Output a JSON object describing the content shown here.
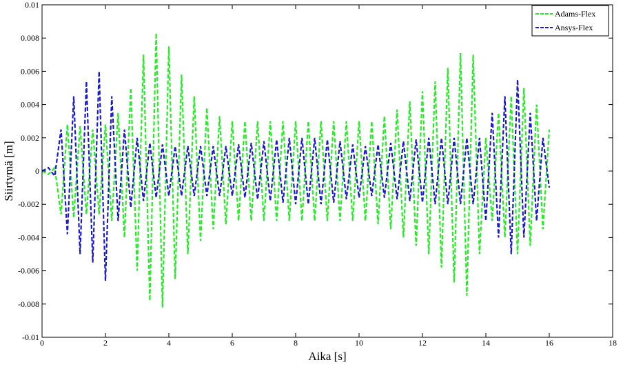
{
  "chart_data": {
    "type": "line",
    "xlabel": "Aika [s]",
    "ylabel": "Siirtymä [m]",
    "xlim": [
      0,
      18
    ],
    "ylim": [
      -0.01,
      0.01
    ],
    "xticks": [
      0,
      2,
      4,
      6,
      8,
      10,
      12,
      14,
      16,
      18
    ],
    "yticks": [
      -0.01,
      -0.008,
      -0.006,
      -0.004,
      -0.002,
      0,
      0.002,
      0.004,
      0.006,
      0.008,
      0.01
    ],
    "grid": false,
    "legend": "upper right",
    "x": [
      0,
      0.2,
      0.4,
      0.6,
      0.8,
      1,
      1.2,
      1.4,
      1.6,
      1.8,
      2,
      2.2,
      2.4,
      2.6,
      2.8,
      3,
      3.2,
      3.4,
      3.6,
      3.8,
      4,
      4.2,
      4.4,
      4.6,
      4.8,
      5,
      5.2,
      5.4,
      5.6,
      5.8,
      6,
      6.2,
      6.4,
      6.6,
      6.8,
      7,
      7.2,
      7.4,
      7.6,
      7.8,
      8,
      8.2,
      8.4,
      8.6,
      8.8,
      9,
      9.2,
      9.4,
      9.6,
      9.8,
      10,
      10.2,
      10.4,
      10.6,
      10.8,
      11,
      11.2,
      11.4,
      11.6,
      11.8,
      12,
      12.2,
      12.4,
      12.6,
      12.8,
      13,
      13.2,
      13.4,
      13.6,
      13.8,
      14,
      14.2,
      14.4,
      14.6,
      14.8,
      15,
      15.2,
      15.4,
      15.6,
      15.8,
      16
    ],
    "series": [
      {
        "name": "Adams-Flex",
        "color": "#22ee22",
        "values": [
          0,
          -0.0002,
          0.0002,
          -0.0026,
          0.0028,
          -0.0028,
          0.0027,
          -0.0026,
          0.0025,
          -0.0026,
          0.0028,
          -0.003,
          0.0035,
          -0.004,
          0.005,
          -0.006,
          0.007,
          -0.0078,
          0.0083,
          -0.0082,
          0.0075,
          -0.0065,
          0.0058,
          -0.005,
          0.0045,
          -0.0042,
          0.0038,
          -0.0035,
          0.0033,
          -0.0032,
          0.003,
          -0.003,
          0.003,
          -0.003,
          0.003,
          -0.003,
          0.003,
          -0.003,
          0.003,
          -0.003,
          0.003,
          -0.003,
          0.003,
          -0.003,
          0.003,
          -0.003,
          0.003,
          -0.003,
          0.003,
          -0.003,
          0.003,
          -0.003,
          0.003,
          -0.0032,
          0.0033,
          -0.0035,
          0.0037,
          -0.004,
          0.0042,
          -0.0045,
          0.0048,
          -0.005,
          0.0054,
          -0.0058,
          0.0062,
          -0.0067,
          0.0071,
          -0.0075,
          0.007,
          -0.005,
          0.002,
          -0.003,
          0.0035,
          -0.004,
          0.0045,
          -0.005,
          0.005,
          -0.0045,
          0.004,
          -0.0035,
          0.0025
        ]
      },
      {
        "name": "Ansys-Flex",
        "color": "#1a1acc",
        "values": [
          0,
          0.0002,
          -0.0003,
          0.0025,
          -0.0038,
          0.0045,
          -0.005,
          0.0054,
          -0.0055,
          0.006,
          -0.0066,
          0.0045,
          -0.003,
          0.0025,
          -0.0022,
          0.002,
          -0.0018,
          0.0017,
          -0.0016,
          0.0016,
          -0.0015,
          0.0015,
          -0.0015,
          0.0015,
          -0.0015,
          0.0015,
          -0.0015,
          0.0015,
          -0.0015,
          0.0015,
          -0.0015,
          0.0016,
          -0.0016,
          0.0017,
          -0.0017,
          0.0018,
          -0.0018,
          0.0019,
          -0.0019,
          0.002,
          -0.002,
          0.002,
          -0.002,
          0.002,
          -0.002,
          0.0019,
          -0.0019,
          0.0018,
          -0.0017,
          0.0016,
          -0.0016,
          0.0015,
          -0.0015,
          0.0016,
          -0.0016,
          0.0017,
          -0.0017,
          0.0018,
          -0.0018,
          0.0019,
          -0.0019,
          0.002,
          -0.002,
          0.002,
          -0.002,
          0.002,
          -0.002,
          0.002,
          -0.002,
          0.002,
          -0.003,
          0.0035,
          -0.004,
          0.0045,
          -0.005,
          0.0055,
          -0.004,
          0.0035,
          -0.003,
          0.002,
          -0.001
        ]
      }
    ]
  }
}
